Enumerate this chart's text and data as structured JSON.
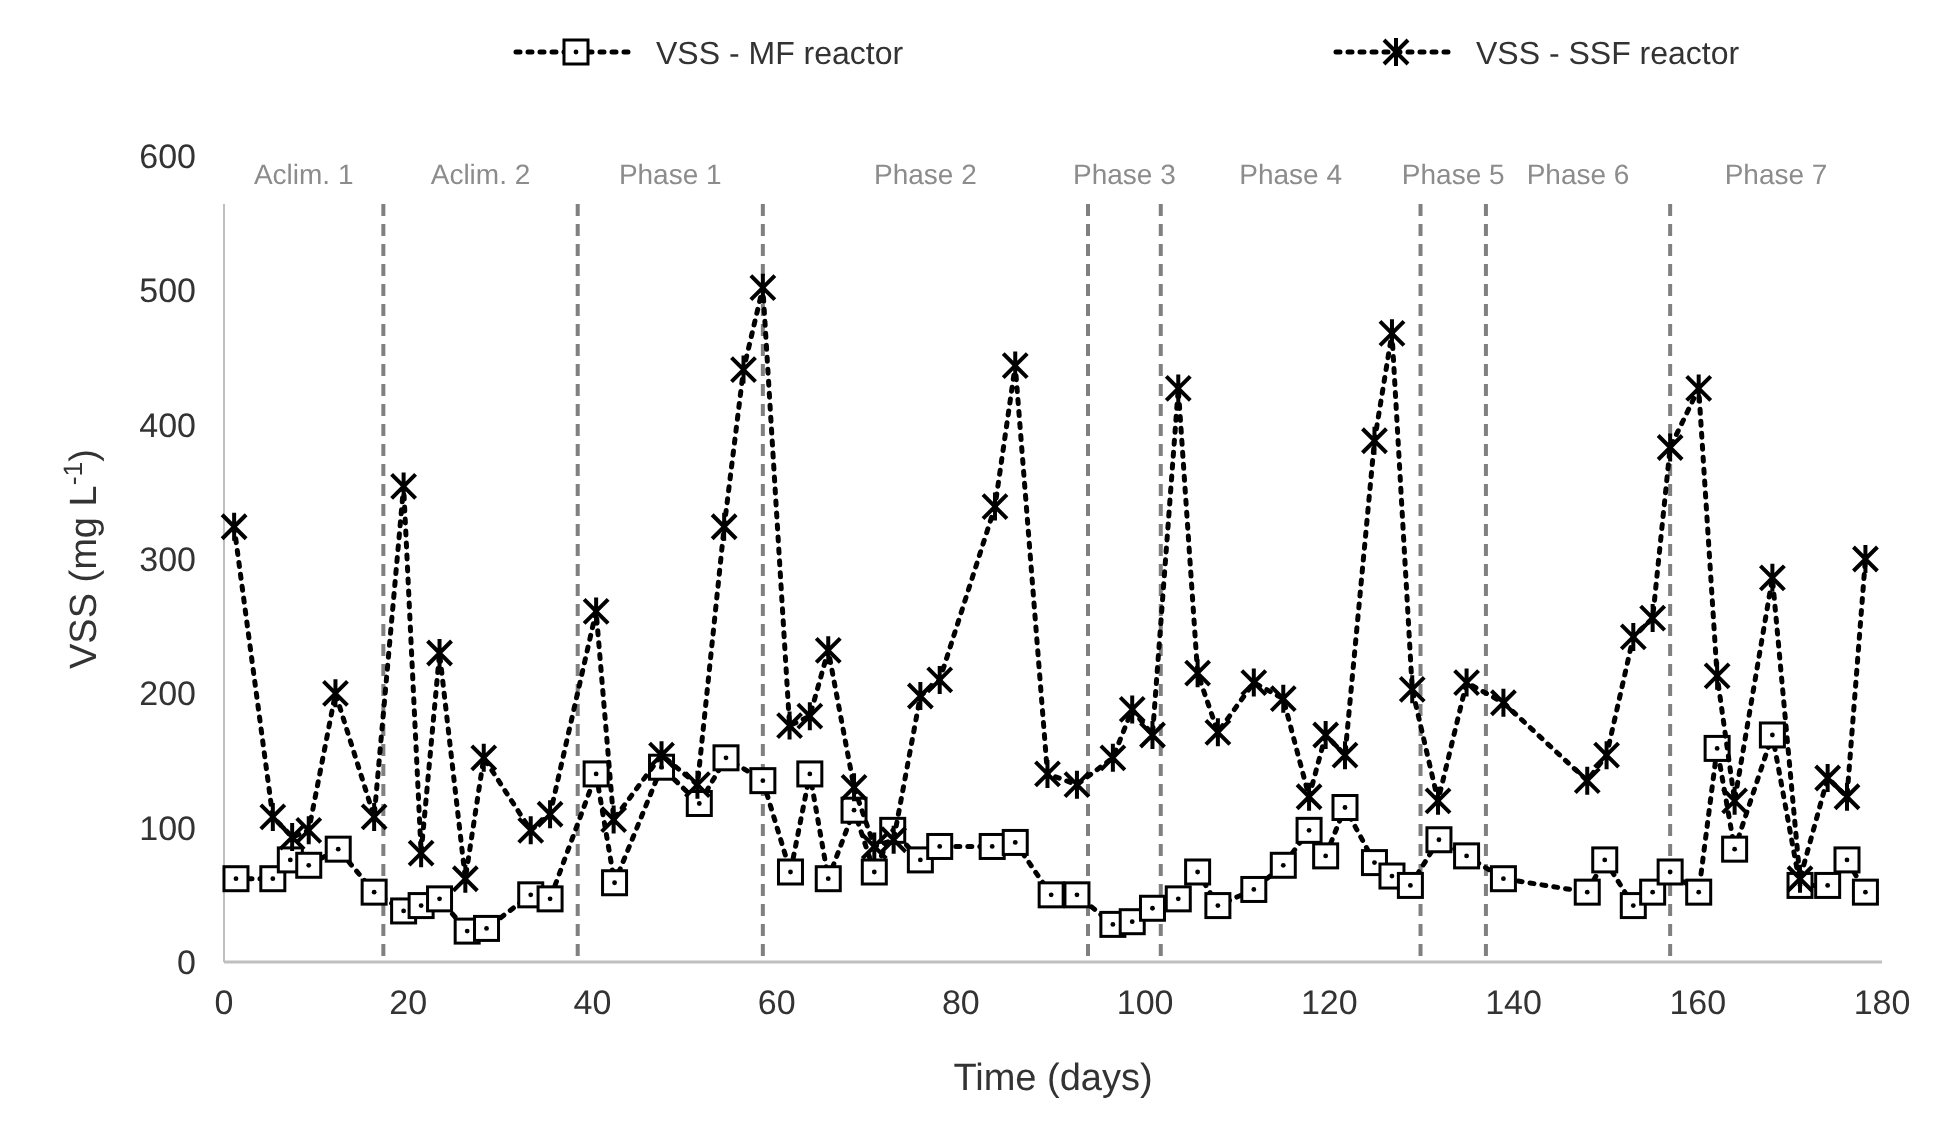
{
  "chart_data": {
    "type": "line",
    "xlabel": "Time (days)",
    "ylabel": "VSS (mg L$^{-1}$)",
    "xlim": [
      0,
      180
    ],
    "ylim": [
      0,
      600
    ],
    "xticks": [
      0,
      20,
      40,
      60,
      80,
      100,
      120,
      140,
      160,
      180
    ],
    "yticks": [
      0,
      100,
      200,
      300,
      400,
      500,
      600
    ],
    "grid": false,
    "legend": "top",
    "line_style": "dotted",
    "series": [
      {
        "name": "VSS - MF reactor",
        "color": "#000000",
        "marker": "square",
        "x": [
          1.3,
          5.3,
          7.2,
          9.2,
          12.4,
          16.3,
          19.5,
          21.4,
          23.4,
          26.4,
          28.5,
          33.3,
          35.4,
          40.4,
          42.4,
          47.5,
          51.6,
          54.5,
          58.5,
          61.5,
          63.6,
          65.6,
          68.4,
          70.6,
          72.6,
          75.6,
          77.7,
          83.4,
          85.9,
          89.8,
          92.6,
          96.5,
          98.6,
          100.8,
          103.6,
          105.7,
          107.9,
          111.8,
          115.0,
          117.8,
          119.6,
          121.7,
          124.9,
          126.8,
          128.8,
          131.9,
          134.9,
          138.9,
          148.0,
          149.9,
          153.0,
          155.1,
          157.0,
          160.1,
          162.1,
          164.0,
          168.1,
          171.1,
          174.1,
          176.2,
          178.2
        ],
        "values": [
          62,
          62,
          76,
          72,
          84,
          52,
          38,
          42,
          47,
          23,
          25,
          50,
          47,
          140,
          59,
          145,
          118,
          152,
          135,
          67,
          140,
          62,
          113,
          67,
          98,
          76,
          86,
          86,
          89,
          50,
          50,
          28,
          30,
          40,
          47,
          67,
          42,
          54,
          72,
          98,
          79,
          115,
          74,
          64,
          57,
          91,
          79,
          62,
          52,
          76,
          42,
          52,
          67,
          52,
          159,
          84,
          169,
          57,
          57,
          76,
          52
        ]
      },
      {
        "name": "VSS - SSF reactor",
        "color": "#000000",
        "marker": "cross",
        "x": [
          1.1,
          5.3,
          7.4,
          9.2,
          12.1,
          16.3,
          19.5,
          21.4,
          23.4,
          26.2,
          28.2,
          33.3,
          35.4,
          40.4,
          42.3,
          47.5,
          51.4,
          54.3,
          56.4,
          58.5,
          61.4,
          63.6,
          65.6,
          68.4,
          70.6,
          72.7,
          75.6,
          77.7,
          83.7,
          85.9,
          89.4,
          92.6,
          96.5,
          98.6,
          100.8,
          103.6,
          105.7,
          107.9,
          111.8,
          115.0,
          117.8,
          119.6,
          121.7,
          124.9,
          126.8,
          129.0,
          131.8,
          134.9,
          138.9,
          148.0,
          150.1,
          153.0,
          155.1,
          157.0,
          160.1,
          162.1,
          164.0,
          168.1,
          171.1,
          174.1,
          176.2,
          178.2
        ],
        "values": [
          324,
          108,
          93,
          98,
          200,
          108,
          354,
          81,
          230,
          62,
          152,
          98,
          110,
          261,
          106,
          154,
          132,
          324,
          441,
          502,
          176,
          183,
          232,
          130,
          86,
          91,
          198,
          210,
          339,
          444,
          140,
          132,
          152,
          188,
          169,
          427,
          215,
          171,
          208,
          196,
          123,
          169,
          154,
          388,
          468,
          203,
          120,
          208,
          193,
          135,
          154,
          242,
          256,
          383,
          427,
          213,
          120,
          286,
          62,
          137,
          123,
          300
        ]
      }
    ],
    "ref_lines": [
      {
        "axis": "x",
        "value": 17.3,
        "line_style": "dashed",
        "color": "#808080"
      },
      {
        "axis": "x",
        "value": 38.4,
        "line_style": "dashed",
        "color": "#808080"
      },
      {
        "axis": "x",
        "value": 58.5,
        "line_style": "dashed",
        "color": "#808080"
      },
      {
        "axis": "x",
        "value": 93.8,
        "line_style": "dashed",
        "color": "#808080"
      },
      {
        "axis": "x",
        "value": 101.7,
        "line_style": "dashed",
        "color": "#808080"
      },
      {
        "axis": "x",
        "value": 129.9,
        "line_style": "dashed",
        "color": "#808080"
      },
      {
        "axis": "x",
        "value": 137.0,
        "line_style": "dashed",
        "color": "#808080"
      },
      {
        "axis": "x",
        "value": 157.0,
        "line_style": "dashed",
        "color": "#808080"
      }
    ],
    "annotations": [
      "Aclim. 1",
      "Aclim. 2",
      "Phase 1",
      "Phase 2",
      "Phase 3",
      "Phase 4",
      "Phase 5",
      "Phase 6",
      "Phase 7"
    ]
  }
}
